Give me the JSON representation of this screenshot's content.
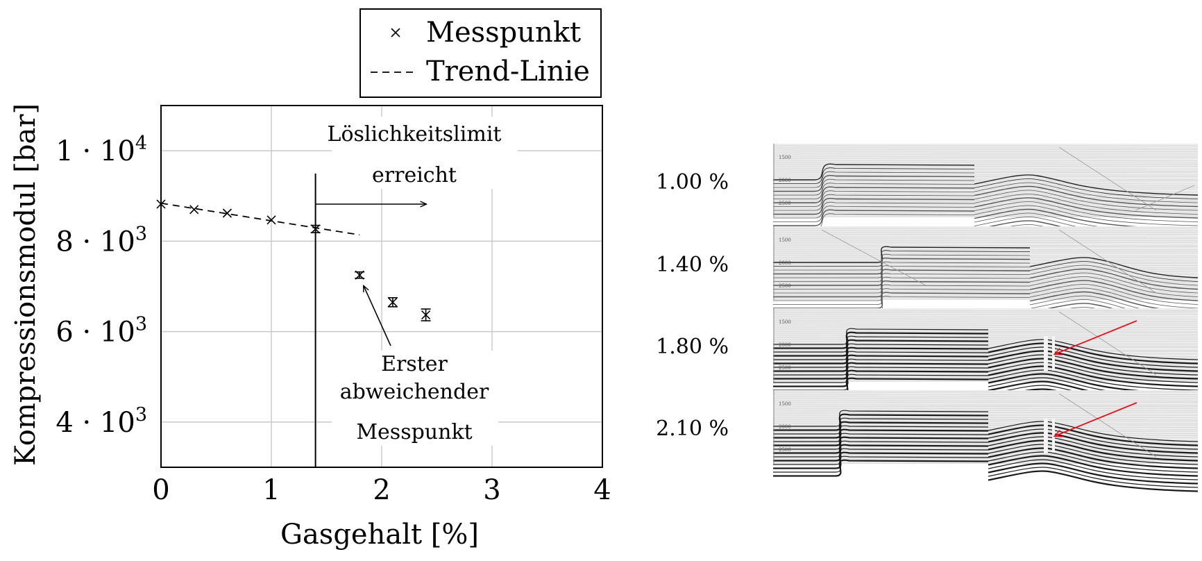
{
  "chart_data": {
    "type": "scatter",
    "xlabel": "Gasgehalt [%]",
    "ylabel": "Kompressionsmodul [bar]",
    "xlim": [
      0,
      4
    ],
    "ylim": [
      3000,
      11000
    ],
    "grid": true,
    "legend_position": "top-center",
    "x_ticks": [
      {
        "value": 0,
        "label": "0"
      },
      {
        "value": 1,
        "label": "1"
      },
      {
        "value": 2,
        "label": "2"
      },
      {
        "value": 3,
        "label": "3"
      },
      {
        "value": 4,
        "label": "4"
      }
    ],
    "y_ticks": [
      {
        "value": 4000,
        "label": "4 · 10",
        "exp": "3"
      },
      {
        "value": 6000,
        "label": "6 · 10",
        "exp": "3"
      },
      {
        "value": 8000,
        "label": "8 · 10",
        "exp": "3"
      },
      {
        "value": 10000,
        "label": "1 · 10",
        "exp": "4"
      }
    ],
    "legend": [
      {
        "label": "Messpunkt",
        "marker": "x"
      },
      {
        "label": "Trend-Linie",
        "marker": "dashed-line"
      }
    ],
    "series": [
      {
        "name": "Messpunkt",
        "x": [
          0,
          0.3,
          0.6,
          1.0,
          1.4,
          1.8,
          2.1,
          2.4
        ],
        "y": [
          8820,
          8700,
          8620,
          8470,
          8270,
          7250,
          6650,
          6370
        ],
        "error": [
          0,
          0,
          0,
          0,
          80,
          70,
          100,
          130
        ]
      },
      {
        "name": "Trend-Linie",
        "x": [
          0,
          1.8
        ],
        "y": [
          8840,
          8140
        ]
      }
    ],
    "solubility_limit_x": 1.4,
    "annotations": [
      {
        "id": "limit",
        "lines": [
          "Löslichkeitslimit",
          "erreicht"
        ]
      },
      {
        "id": "first_deviating",
        "lines": [
          "Erster",
          "abweichender",
          "Messpunkt"
        ]
      }
    ]
  },
  "thumbnails": [
    {
      "label": "1.00 %",
      "ticks": [
        "1500",
        "2000",
        "2500"
      ],
      "arrow": false
    },
    {
      "label": "1.40 %",
      "ticks": [
        "1500",
        "2000",
        "2500"
      ],
      "arrow": false
    },
    {
      "label": "1.80 %",
      "ticks": [
        "1500",
        "2000",
        "2500"
      ],
      "arrow": true
    },
    {
      "label": "2.10 %",
      "ticks": [
        "1500",
        "2000",
        "2500"
      ],
      "arrow": true
    }
  ],
  "colors": {
    "axis": "#000000",
    "grid": "#c8c8c8",
    "arrow_highlight": "#e8141b"
  }
}
